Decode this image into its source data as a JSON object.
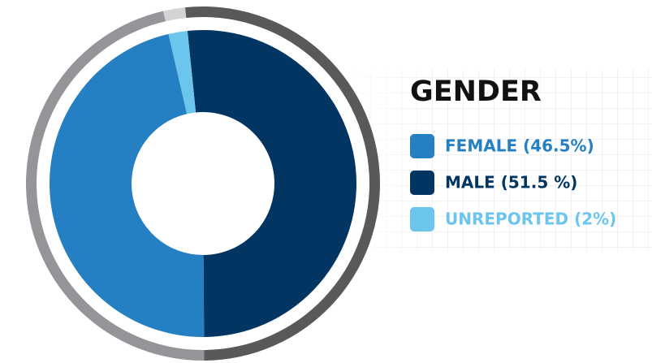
{
  "chart_data": {
    "type": "donut",
    "title": "GENDER",
    "categories": [
      "FEMALE (46.5%)",
      "MALE (51.5 %)",
      "UNREPORTED (2%)"
    ],
    "values": [
      46.5,
      51.5,
      2
    ],
    "colors": [
      "#2580c3",
      "#033563",
      "#6cc5ec"
    ],
    "ring_colors": [
      "#939598",
      "#58595b",
      "#d1d3d4"
    ]
  }
}
